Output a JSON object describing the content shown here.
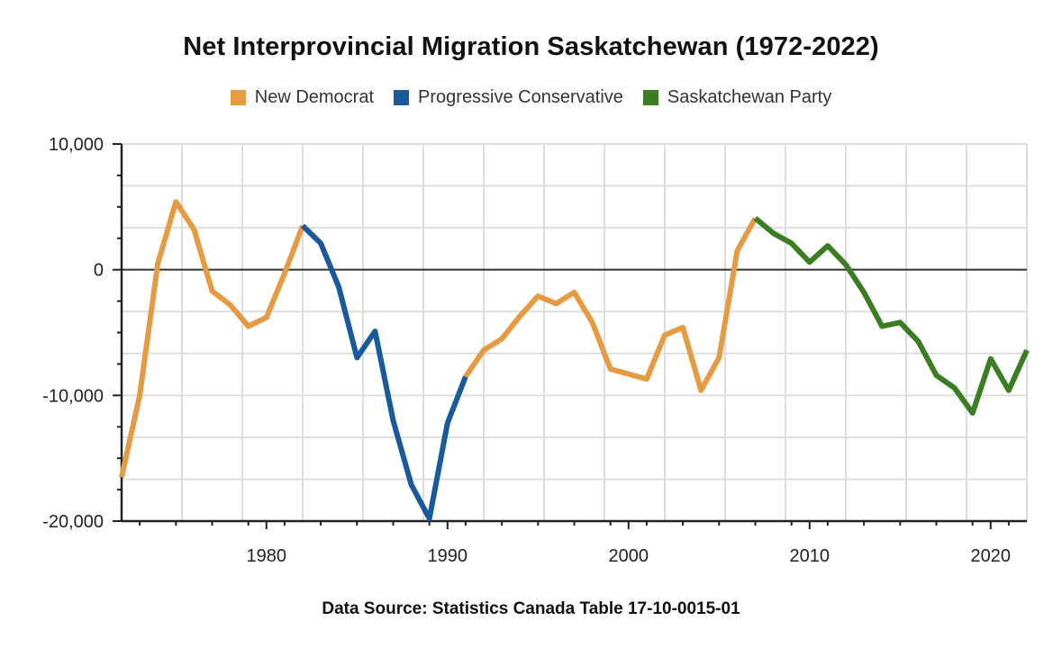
{
  "chart_data": {
    "type": "line",
    "title": "Net Interprovincial Migration Saskatchewan (1972-2022)",
    "xlabel": "",
    "ylabel": "",
    "xlim": [
      1972,
      2022
    ],
    "ylim": [
      -20000,
      10000
    ],
    "x_ticks": [
      1980,
      1990,
      2000,
      2010,
      2020
    ],
    "x_tick_labels": [
      "1980",
      "1990",
      "2000",
      "2010",
      "2020"
    ],
    "y_ticks": [
      10000,
      0,
      -10000,
      -20000
    ],
    "y_tick_labels": [
      "10,000",
      "0",
      "-10,000",
      "-20,000"
    ],
    "grid": true,
    "legend_position": "top-center",
    "series": [
      {
        "name": "New Democrat",
        "color": "#e69a42",
        "x": [
          1972,
          1973,
          1974,
          1975,
          1976,
          1977,
          1978,
          1979,
          1980,
          1981,
          1982
        ],
        "values": [
          -16500,
          -10000,
          500,
          5400,
          3200,
          -1700,
          -2800,
          -4500,
          -3800,
          -300,
          3500
        ]
      },
      {
        "name": "Progressive Conservative",
        "color": "#1a5a9c",
        "x": [
          1982,
          1983,
          1984,
          1985,
          1986,
          1987,
          1988,
          1989,
          1990,
          1991
        ],
        "values": [
          3500,
          2100,
          -1400,
          -7000,
          -4900,
          -12000,
          -17100,
          -19800,
          -12200,
          -8500
        ]
      },
      {
        "name": "New Democrat",
        "color": "#e69a42",
        "x": [
          1991,
          1992,
          1993,
          1994,
          1995,
          1996,
          1997,
          1998,
          1999,
          2000,
          2001,
          2002,
          2003,
          2004,
          2005,
          2006,
          2007
        ],
        "values": [
          -8500,
          -6400,
          -5500,
          -3700,
          -2100,
          -2700,
          -1800,
          -4200,
          -7900,
          -8300,
          -8700,
          -5200,
          -4600,
          -9600,
          -7000,
          1500,
          4100
        ]
      },
      {
        "name": "Saskatchewan Party",
        "color": "#3a7d22",
        "x": [
          2007,
          2008,
          2009,
          2010,
          2011,
          2012,
          2013,
          2014,
          2015,
          2016,
          2017,
          2018,
          2019,
          2020,
          2021,
          2022
        ],
        "values": [
          4100,
          2900,
          2100,
          600,
          1900,
          400,
          -1800,
          -4500,
          -4200,
          -5700,
          -8400,
          -9400,
          -11400,
          -7100,
          -9600,
          -6400
        ]
      }
    ],
    "legend": [
      {
        "label": "New Democrat",
        "color": "#e69a42"
      },
      {
        "label": "Progressive Conservative",
        "color": "#1a5a9c"
      },
      {
        "label": "Saskatchewan Party",
        "color": "#3a7d22"
      }
    ],
    "source_note": "Data Source: Statistics Canada Table 17-10-0015-01"
  }
}
